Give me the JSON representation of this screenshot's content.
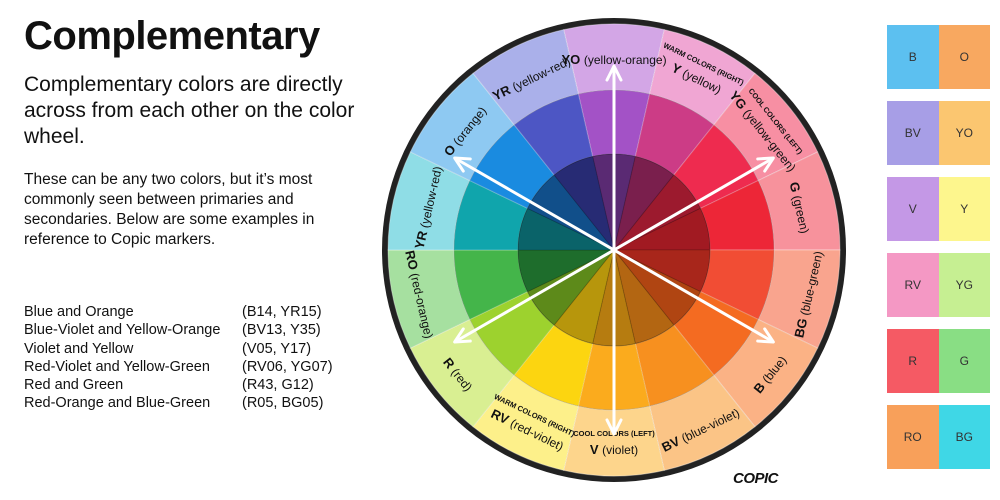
{
  "heading": {
    "title": "Complementary",
    "subtitle": "Complementary colors are directly across from each other on the color wheel.",
    "body": "These can be any two colors, but it’s most commonly seen between primaries and secondaries. Below are some examples in reference to Copic markers."
  },
  "examples": [
    {
      "name": "Blue and Orange",
      "codes": "(B14, YR15)"
    },
    {
      "name": "Blue-Violet and Yellow-Orange",
      "codes": "(BV13, Y35)"
    },
    {
      "name": "Violet and Yellow",
      "codes": "(V05, Y17)"
    },
    {
      "name": "Red-Violet and Yellow-Green",
      "codes": "(RV06, YG07)"
    },
    {
      "name": "Red and Green",
      "codes": "(R43, G12)"
    },
    {
      "name": "Red-Orange and Blue-Green",
      "codes": "(R05, BG05)"
    }
  ],
  "wheel": {
    "segments": [
      {
        "code": "V",
        "name": "(violet)",
        "note": "COOL COLORS (LEFT)",
        "outer": "#d3a6e6",
        "mid": "#a352c6",
        "inner": "#5a2a73"
      },
      {
        "code": "RV",
        "name": "(red-violet)",
        "note": "WARM COLORS (RIGHT)",
        "outer": "#f0a6d3",
        "mid": "#cc3c86",
        "inner": "#7a1f4d"
      },
      {
        "code": "R",
        "name": "(red)",
        "note": "",
        "outer": "#f78fa3",
        "mid": "#ee2b4f",
        "inner": "#9c1a2e"
      },
      {
        "code": "RO",
        "name": "(red-orange)",
        "note": "",
        "outer": "#f7929c",
        "mid": "#ed2637",
        "inner": "#a11a22"
      },
      {
        "code": "YR",
        "name": "(yellow-red)",
        "note": "",
        "outer": "#f9a48e",
        "mid": "#f14d34",
        "inner": "#a8261b"
      },
      {
        "code": "O",
        "name": "(orange)",
        "note": "",
        "outer": "#fbb285",
        "mid": "#f46b21",
        "inner": "#b04512"
      },
      {
        "code": "YR",
        "name": "(yellow-red)",
        "note": "",
        "outer": "#fbc486",
        "mid": "#f7901f",
        "inner": "#b36612"
      },
      {
        "code": "YO",
        "name": "(yellow-orange)",
        "note": "",
        "outer": "#fdd58c",
        "mid": "#fbab1d",
        "inner": "#b67c10"
      },
      {
        "code": "Y",
        "name": "(yellow)",
        "note": "WARM COLORS (RIGHT)",
        "outer": "#fdf08a",
        "mid": "#fcd510",
        "inner": "#b7960c"
      },
      {
        "code": "YG",
        "name": "(yellow-green)",
        "note": "COOL COLORS (LEFT)",
        "outer": "#d9ef92",
        "mid": "#9dd22e",
        "inner": "#5d8a1a"
      },
      {
        "code": "G",
        "name": "(green)",
        "note": "",
        "outer": "#a6e0a0",
        "mid": "#44b54a",
        "inner": "#1e6d2c"
      },
      {
        "code": "BG",
        "name": "(blue-green)",
        "note": "",
        "outer": "#8fdde6",
        "mid": "#10a5ac",
        "inner": "#0a6369"
      },
      {
        "code": "B",
        "name": "(blue)",
        "note": "",
        "outer": "#8ec9f2",
        "mid": "#1a8be0",
        "inner": "#114f8a"
      },
      {
        "code": "BV",
        "name": "(blue-violet)",
        "note": "",
        "outer": "#aab0ea",
        "mid": "#4d56c4",
        "inner": "#272b74"
      }
    ]
  },
  "swatches": [
    [
      {
        "label": "B",
        "color": "#5cc0f0"
      },
      {
        "label": "O",
        "color": "#f8a860"
      }
    ],
    [
      {
        "label": "BV",
        "color": "#a79ee6"
      },
      {
        "label": "YO",
        "color": "#fbc670"
      }
    ],
    [
      {
        "label": "V",
        "color": "#c498e6"
      },
      {
        "label": "Y",
        "color": "#fdf68d"
      }
    ],
    [
      {
        "label": "RV",
        "color": "#f498c4"
      },
      {
        "label": "YG",
        "color": "#c6ef92"
      }
    ],
    [
      {
        "label": "R",
        "color": "#f55a64"
      },
      {
        "label": "G",
        "color": "#89de84"
      }
    ],
    [
      {
        "label": "RO",
        "color": "#f8a05a"
      },
      {
        "label": "BG",
        "color": "#3fd7e6"
      }
    ]
  ],
  "brand": "COPIC"
}
